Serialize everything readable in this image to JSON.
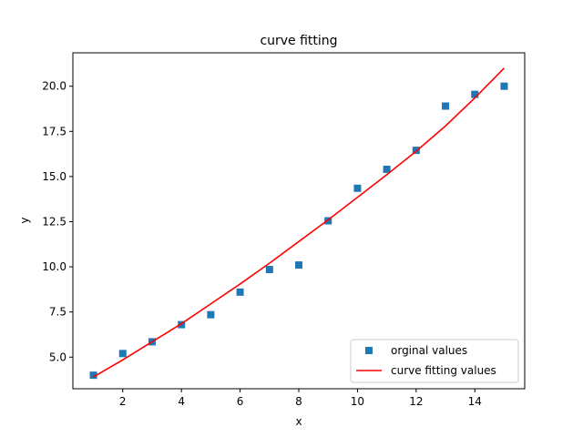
{
  "chart_data": {
    "type": "scatter",
    "title": "curve fitting",
    "xlabel": "x",
    "ylabel": "y",
    "xlim": [
      0.3,
      15.7
    ],
    "ylim": [
      3.25,
      21.85
    ],
    "xticks": [
      2,
      4,
      6,
      8,
      10,
      12,
      14
    ],
    "xtick_labels": [
      "2",
      "4",
      "6",
      "8",
      "10",
      "12",
      "14"
    ],
    "yticks": [
      5.0,
      7.5,
      10.0,
      12.5,
      15.0,
      17.5,
      20.0
    ],
    "ytick_labels": [
      "5.0",
      "7.5",
      "10.0",
      "12.5",
      "15.0",
      "17.5",
      "20.0"
    ],
    "grid": false,
    "legend_position": "lower-right",
    "series": [
      {
        "name": "orginal values",
        "kind": "markers",
        "marker": "square",
        "color": "#1f77b4",
        "x": [
          1,
          2,
          3,
          4,
          5,
          6,
          7,
          8,
          9,
          10,
          11,
          12,
          13,
          14,
          15
        ],
        "y": [
          4.0,
          5.2,
          5.85,
          6.8,
          7.35,
          8.6,
          9.85,
          10.1,
          12.55,
          14.35,
          15.4,
          16.45,
          18.9,
          19.55,
          20.0
        ]
      },
      {
        "name": "curve fitting values",
        "kind": "line",
        "color": "#ff0000",
        "x": [
          1,
          2,
          3,
          4,
          5,
          6,
          7,
          8,
          9,
          10,
          11,
          12,
          13,
          14,
          15
        ],
        "y": [
          3.9,
          4.85,
          5.85,
          6.85,
          7.95,
          9.05,
          10.2,
          11.4,
          12.6,
          13.85,
          15.1,
          16.4,
          17.8,
          19.35,
          21.0
        ]
      }
    ]
  }
}
